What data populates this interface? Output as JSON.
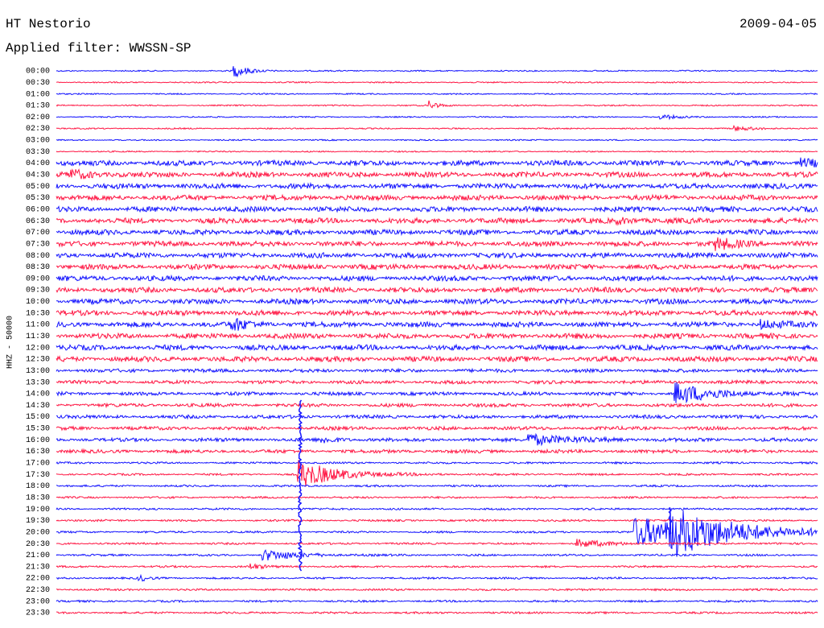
{
  "header": {
    "station": "HT Nestorio",
    "date": "2009-04-05",
    "filter": "Applied filter: WWSSN-SP"
  },
  "axis_label": "HHZ - 50000",
  "rows": [
    "00:00",
    "00:30",
    "01:00",
    "01:30",
    "02:00",
    "02:30",
    "03:00",
    "03:30",
    "04:00",
    "04:30",
    "05:00",
    "05:30",
    "06:00",
    "06:30",
    "07:00",
    "07:30",
    "08:00",
    "08:30",
    "09:00",
    "09:30",
    "10:00",
    "10:30",
    "11:00",
    "11:30",
    "12:00",
    "12:30",
    "13:00",
    "13:30",
    "14:00",
    "14:30",
    "15:00",
    "15:30",
    "16:00",
    "16:30",
    "17:00",
    "17:30",
    "18:00",
    "18:30",
    "19:00",
    "19:30",
    "20:00",
    "20:30",
    "21:00",
    "21:30",
    "22:00",
    "22:30",
    "23:00",
    "23:30"
  ]
}
